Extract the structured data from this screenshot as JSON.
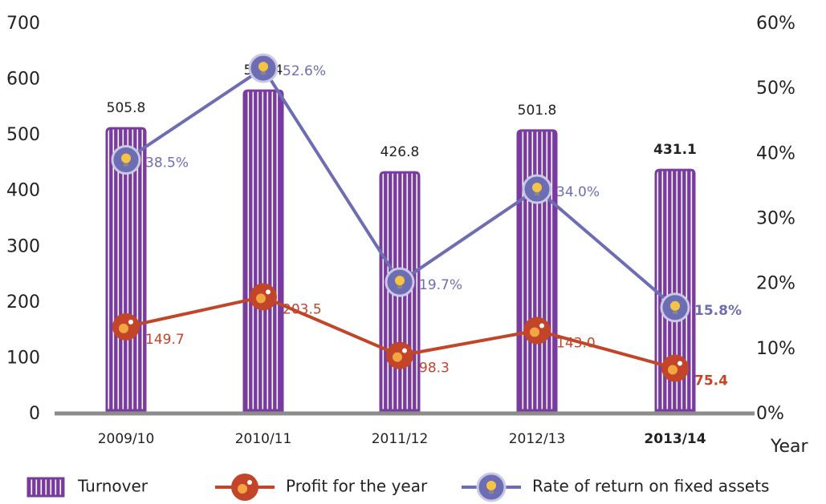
{
  "chart_data": {
    "type": "bar_line",
    "categories": [
      "2009/10",
      "2010/11",
      "2011/12",
      "2012/13",
      "2013/14"
    ],
    "x_label": "Year",
    "series": [
      {
        "name": "Turnover",
        "type": "bar",
        "color": "#7a3b9e",
        "values": [
          505.8,
          573.4,
          426.8,
          501.8,
          431.1
        ]
      },
      {
        "name": "Profit for the year",
        "type": "line",
        "color": "#c2452a",
        "values": [
          149.7,
          203.5,
          98.3,
          143.0,
          75.4
        ],
        "value_labels": [
          "149.7",
          "203.5",
          "98.3",
          "143.0",
          "75.4"
        ]
      },
      {
        "name": "Rate of return on fixed assets",
        "type": "line",
        "axis": "y2",
        "color": "#6d6db3",
        "values": [
          38.5,
          52.6,
          19.7,
          34.0,
          15.8
        ],
        "value_labels": [
          "38.5%",
          "52.6%",
          "19.7%",
          "34.0%",
          "15.8%"
        ]
      }
    ],
    "ylim": [
      0,
      700
    ],
    "yticks": [
      0,
      100,
      200,
      300,
      400,
      500,
      600,
      700
    ],
    "y2lim": [
      0,
      60
    ],
    "y2ticks": [
      {
        "value": 0,
        "label": "0%"
      },
      {
        "value": 10,
        "label": "10%"
      },
      {
        "value": 20,
        "label": "20%"
      },
      {
        "value": 30,
        "label": "30%"
      },
      {
        "value": 40,
        "label": "40%"
      },
      {
        "value": 50,
        "label": "50%"
      },
      {
        "value": 60,
        "label": "60%"
      }
    ]
  }
}
